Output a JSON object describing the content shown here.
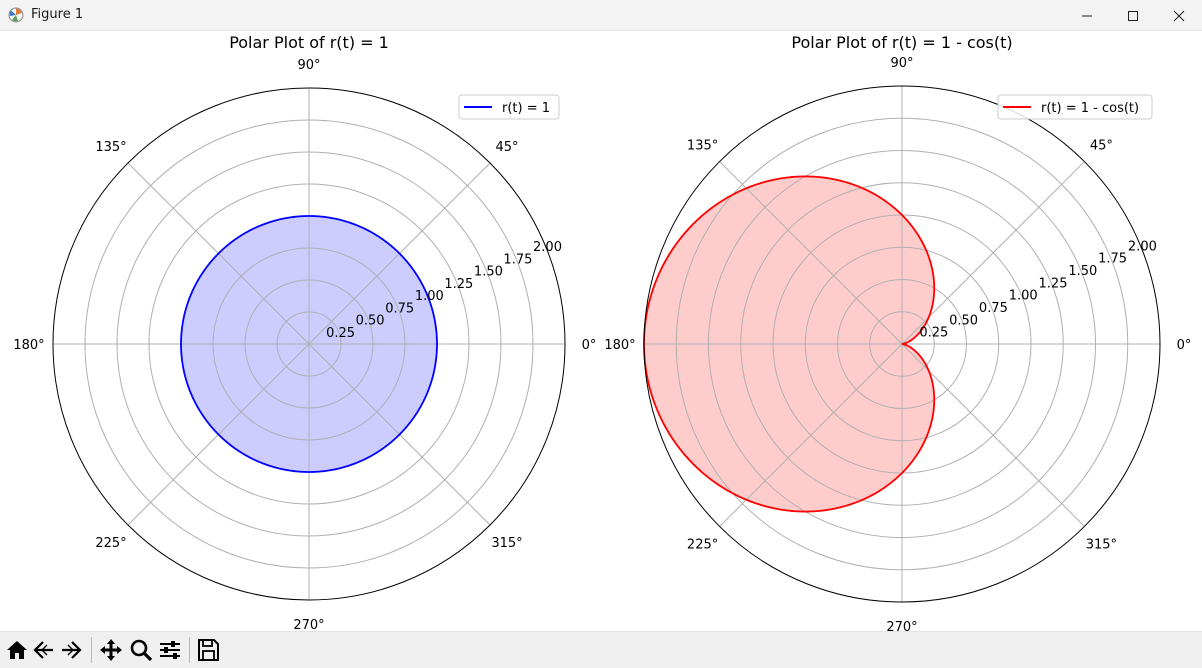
{
  "window": {
    "title": "Figure 1",
    "controls": [
      "minimize",
      "maximize",
      "close"
    ]
  },
  "toolbar": {
    "buttons": [
      "home",
      "back",
      "forward",
      "pan",
      "zoom",
      "configure-subplots",
      "save"
    ]
  },
  "colors": {
    "blue": "#0000ff",
    "blue_fill": "#ccccff",
    "red": "#ff0000",
    "red_fill": "#ffcccc",
    "grid": "#b0b0b0"
  },
  "chart_data": [
    {
      "type": "polar",
      "title": "Polar Plot of r(t) = 1",
      "function": "1",
      "rlim": [
        0,
        2.0
      ],
      "r_ticks": [
        "0.25",
        "0.50",
        "0.75",
        "1.00",
        "1.25",
        "1.50",
        "1.75",
        "2.00"
      ],
      "theta_ticks": [
        "0°",
        "45°",
        "90°",
        "135°",
        "180°",
        "225°",
        "270°",
        "315°"
      ],
      "grid": true,
      "legend": {
        "label": "r(t) = 1",
        "placement": "upper-right"
      },
      "line_color": "#0000ff",
      "fill_color": "#ccccff"
    },
    {
      "type": "polar",
      "title": "Polar Plot of r(t) = 1 - cos(t)",
      "function": "1 - cos(t)",
      "rlim": [
        0,
        2.0
      ],
      "r_ticks": [
        "0.25",
        "0.50",
        "0.75",
        "1.00",
        "1.25",
        "1.50",
        "1.75",
        "2.00"
      ],
      "theta_ticks": [
        "0°",
        "45°",
        "90°",
        "135°",
        "180°",
        "225°",
        "270°",
        "315°"
      ],
      "grid": true,
      "legend": {
        "label": "r(t) = 1 - cos(t)",
        "placement": "upper-right"
      },
      "line_color": "#ff0000",
      "fill_color": "#ffcccc"
    }
  ]
}
